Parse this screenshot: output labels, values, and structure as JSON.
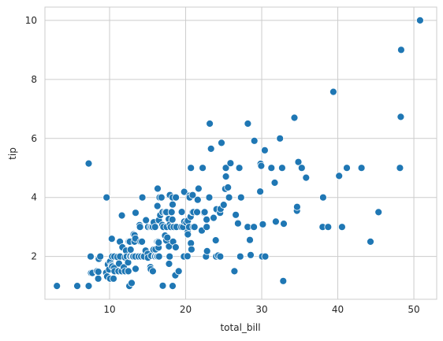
{
  "chart_data": {
    "type": "scatter",
    "title": "",
    "xlabel": "total_bill",
    "ylabel": "tip",
    "xlim": [
      1.5,
      53.0
    ],
    "ylim": [
      0.55,
      10.45
    ],
    "xticks": [
      10,
      20,
      30,
      40,
      50
    ],
    "yticks": [
      2,
      4,
      6,
      8,
      10
    ],
    "grid": true,
    "marker_color": "#1f77b4",
    "marker_edge": "#ffffff",
    "points": [
      [
        3.07,
        1.0
      ],
      [
        5.75,
        1.0
      ],
      [
        7.25,
        1.0
      ],
      [
        7.25,
        5.15
      ],
      [
        7.51,
        2.0
      ],
      [
        7.56,
        1.44
      ],
      [
        7.74,
        1.44
      ],
      [
        8.35,
        1.5
      ],
      [
        8.51,
        1.25
      ],
      [
        8.52,
        1.48
      ],
      [
        8.58,
        1.92
      ],
      [
        8.77,
        2.0
      ],
      [
        9.55,
        1.45
      ],
      [
        9.6,
        4.0
      ],
      [
        9.68,
        1.32
      ],
      [
        9.78,
        1.73
      ],
      [
        9.94,
        1.56
      ],
      [
        10.07,
        1.25
      ],
      [
        10.07,
        1.83
      ],
      [
        10.27,
        1.71
      ],
      [
        10.29,
        2.6
      ],
      [
        10.33,
        1.67
      ],
      [
        10.33,
        2.0
      ],
      [
        10.34,
        1.66
      ],
      [
        10.34,
        2.0
      ],
      [
        10.51,
        1.25
      ],
      [
        10.59,
        1.61
      ],
      [
        10.63,
        2.0
      ],
      [
        10.65,
        1.5
      ],
      [
        11.02,
        1.98
      ],
      [
        11.17,
        1.5
      ],
      [
        11.24,
        1.76
      ],
      [
        11.35,
        2.5
      ],
      [
        11.38,
        2.0
      ],
      [
        11.59,
        1.5
      ],
      [
        11.61,
        3.39
      ],
      [
        11.69,
        2.31
      ],
      [
        11.87,
        1.63
      ],
      [
        12.02,
        1.97
      ],
      [
        12.03,
        1.5
      ],
      [
        12.16,
        2.2
      ],
      [
        12.26,
        2.0
      ],
      [
        12.43,
        1.8
      ],
      [
        12.46,
        1.5
      ],
      [
        12.48,
        2.52
      ],
      [
        12.54,
        2.5
      ],
      [
        12.6,
        1.0
      ],
      [
        12.66,
        2.5
      ],
      [
        12.69,
        2.0
      ],
      [
        12.74,
        2.01
      ],
      [
        12.76,
        2.23
      ],
      [
        12.9,
        1.1
      ],
      [
        13.0,
        2.0
      ],
      [
        13.03,
        2.0
      ],
      [
        13.13,
        2.0
      ],
      [
        13.16,
        2.75
      ],
      [
        13.27,
        2.5
      ],
      [
        13.28,
        2.72
      ],
      [
        13.37,
        2.0
      ],
      [
        13.39,
        2.61
      ],
      [
        13.42,
        1.58
      ],
      [
        13.42,
        3.48
      ],
      [
        13.81,
        2.0
      ],
      [
        13.94,
        3.06
      ],
      [
        14.0,
        3.0
      ],
      [
        14.07,
        2.5
      ],
      [
        14.15,
        2.0
      ],
      [
        14.26,
        2.5
      ],
      [
        14.31,
        4.0
      ],
      [
        14.48,
        2.0
      ],
      [
        14.52,
        2.0
      ],
      [
        14.73,
        2.2
      ],
      [
        14.78,
        3.23
      ],
      [
        15.01,
        2.09
      ],
      [
        15.04,
        1.96
      ],
      [
        15.06,
        3.0
      ],
      [
        15.36,
        1.64
      ],
      [
        15.38,
        3.0
      ],
      [
        15.42,
        1.57
      ],
      [
        15.48,
        2.02
      ],
      [
        15.53,
        3.0
      ],
      [
        15.69,
        1.5
      ],
      [
        15.69,
        3.0
      ],
      [
        15.77,
        2.23
      ],
      [
        15.81,
        3.16
      ],
      [
        15.95,
        2.0
      ],
      [
        15.98,
        2.03
      ],
      [
        15.98,
        3.0
      ],
      [
        16.0,
        2.0
      ],
      [
        16.04,
        2.24
      ],
      [
        16.21,
        2.0
      ],
      [
        16.27,
        2.5
      ],
      [
        16.29,
        3.71
      ],
      [
        16.31,
        2.0
      ],
      [
        16.32,
        4.3
      ],
      [
        16.4,
        2.5
      ],
      [
        16.43,
        2.3
      ],
      [
        16.45,
        2.47
      ],
      [
        16.47,
        3.23
      ],
      [
        16.49,
        2.0
      ],
      [
        16.58,
        4.0
      ],
      [
        16.66,
        3.4
      ],
      [
        16.82,
        4.0
      ],
      [
        16.93,
        3.07
      ],
      [
        16.97,
        3.5
      ],
      [
        16.99,
        1.01
      ],
      [
        17.07,
        3.0
      ],
      [
        17.29,
        2.71
      ],
      [
        17.31,
        3.5
      ],
      [
        17.46,
        2.54
      ],
      [
        17.47,
        3.5
      ],
      [
        17.51,
        3.0
      ],
      [
        17.59,
        2.64
      ],
      [
        17.78,
        3.27
      ],
      [
        17.81,
        2.34
      ],
      [
        17.82,
        1.75
      ],
      [
        17.89,
        2.0
      ],
      [
        17.92,
        4.08
      ],
      [
        17.92,
        3.08
      ],
      [
        18.04,
        3.0
      ],
      [
        18.15,
        3.5
      ],
      [
        18.24,
        3.76
      ],
      [
        18.26,
        3.25
      ],
      [
        18.28,
        4.0
      ],
      [
        18.29,
        3.76
      ],
      [
        18.29,
        1.0
      ],
      [
        18.35,
        2.5
      ],
      [
        18.43,
        3.0
      ],
      [
        18.64,
        1.36
      ],
      [
        18.69,
        2.31
      ],
      [
        18.71,
        4.0
      ],
      [
        18.78,
        3.0
      ],
      [
        19.08,
        1.5
      ],
      [
        19.44,
        3.0
      ],
      [
        19.49,
        3.51
      ],
      [
        19.65,
        3.0
      ],
      [
        19.77,
        2.0
      ],
      [
        19.81,
        4.19
      ],
      [
        19.82,
        3.18
      ],
      [
        20.08,
        3.15
      ],
      [
        20.23,
        2.01
      ],
      [
        20.27,
        2.83
      ],
      [
        20.29,
        2.75
      ],
      [
        20.29,
        3.21
      ],
      [
        20.45,
        3.0
      ],
      [
        20.49,
        4.06
      ],
      [
        20.53,
        4.0
      ],
      [
        20.65,
        3.35
      ],
      [
        20.69,
        2.45
      ],
      [
        20.69,
        5.0
      ],
      [
        20.76,
        2.24
      ],
      [
        20.9,
        3.5
      ],
      [
        20.92,
        4.08
      ],
      [
        21.01,
        3.5
      ],
      [
        21.01,
        3.0
      ],
      [
        21.16,
        3.0
      ],
      [
        21.5,
        3.5
      ],
      [
        21.58,
        3.92
      ],
      [
        21.7,
        4.3
      ],
      [
        22.12,
        2.88
      ],
      [
        22.23,
        5.0
      ],
      [
        22.42,
        3.48
      ],
      [
        22.49,
        3.5
      ],
      [
        22.67,
        2.0
      ],
      [
        22.75,
        3.25
      ],
      [
        22.76,
        3.0
      ],
      [
        22.82,
        2.18
      ],
      [
        23.1,
        4.0
      ],
      [
        23.17,
        6.5
      ],
      [
        23.33,
        5.65
      ],
      [
        23.68,
        3.31
      ],
      [
        23.95,
        2.55
      ],
      [
        24.01,
        2.0
      ],
      [
        24.06,
        3.6
      ],
      [
        24.27,
        2.03
      ],
      [
        24.52,
        3.48
      ],
      [
        24.55,
        2.0
      ],
      [
        24.59,
        3.61
      ],
      [
        24.71,
        5.85
      ],
      [
        25.0,
        3.75
      ],
      [
        25.21,
        4.29
      ],
      [
        25.28,
        5.0
      ],
      [
        25.29,
        4.71
      ],
      [
        25.56,
        4.34
      ],
      [
        25.71,
        4.0
      ],
      [
        25.89,
        5.16
      ],
      [
        26.41,
        1.5
      ],
      [
        26.59,
        3.41
      ],
      [
        26.86,
        3.14
      ],
      [
        26.88,
        3.12
      ],
      [
        27.05,
        5.0
      ],
      [
        27.18,
        2.0
      ],
      [
        27.2,
        4.0
      ],
      [
        27.28,
        4.0
      ],
      [
        28.15,
        3.0
      ],
      [
        28.17,
        6.5
      ],
      [
        28.44,
        2.56
      ],
      [
        28.55,
        2.05
      ],
      [
        28.97,
        3.0
      ],
      [
        29.03,
        5.92
      ],
      [
        29.8,
        4.2
      ],
      [
        29.85,
        5.14
      ],
      [
        29.93,
        5.07
      ],
      [
        30.06,
        2.0
      ],
      [
        30.14,
        3.09
      ],
      [
        30.4,
        5.6
      ],
      [
        30.46,
        2.0
      ],
      [
        31.27,
        5.0
      ],
      [
        31.71,
        4.5
      ],
      [
        31.85,
        3.18
      ],
      [
        32.4,
        6.0
      ],
      [
        32.68,
        5.0
      ],
      [
        32.83,
        1.17
      ],
      [
        32.9,
        3.11
      ],
      [
        34.3,
        6.7
      ],
      [
        34.63,
        3.55
      ],
      [
        34.65,
        3.68
      ],
      [
        34.81,
        5.2
      ],
      [
        35.26,
        5.0
      ],
      [
        35.83,
        4.67
      ],
      [
        38.01,
        3.0
      ],
      [
        38.07,
        4.0
      ],
      [
        38.73,
        3.0
      ],
      [
        39.42,
        7.58
      ],
      [
        40.17,
        4.73
      ],
      [
        40.55,
        3.0
      ],
      [
        41.19,
        5.0
      ],
      [
        43.11,
        5.0
      ],
      [
        44.3,
        2.5
      ],
      [
        45.35,
        3.5
      ],
      [
        48.17,
        5.0
      ],
      [
        48.27,
        6.73
      ],
      [
        48.33,
        9.0
      ],
      [
        50.81,
        10.0
      ]
    ]
  }
}
